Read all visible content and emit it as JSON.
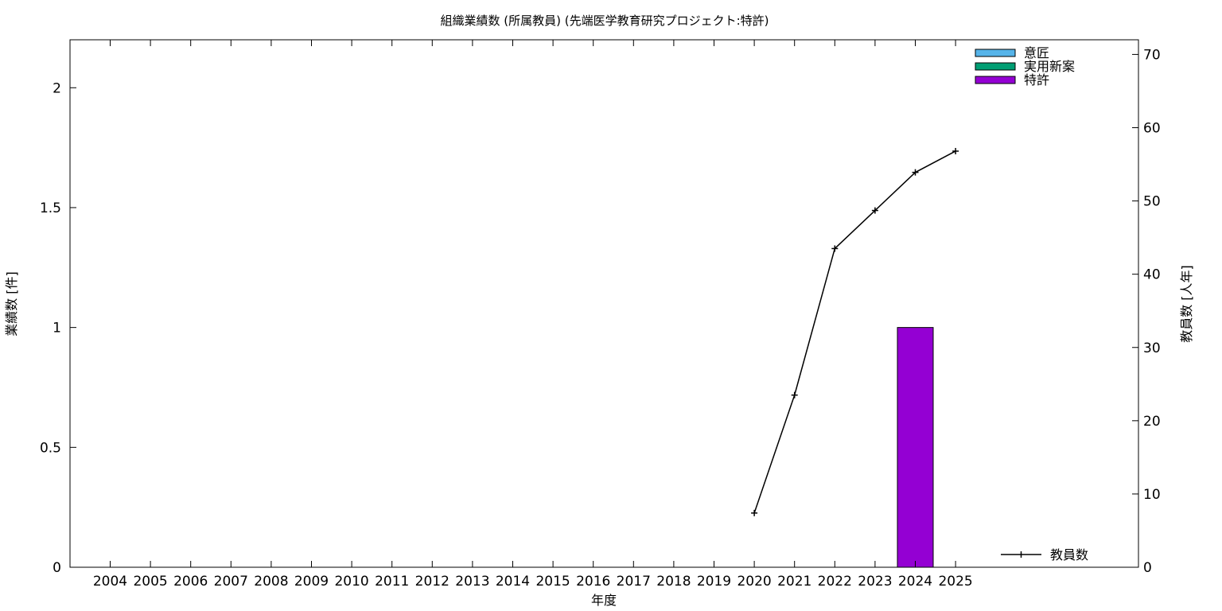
{
  "chart_data": {
    "type": "bar",
    "title": "組織業績数 (所属教員) (先端医学教育研究プロジェクト:特許)",
    "xlabel": "年度",
    "ylabel": "業績数 [件]",
    "y2label": "教員数 [人年]",
    "categories": [
      "2004",
      "2005",
      "2006",
      "2007",
      "2008",
      "2009",
      "2010",
      "2011",
      "2012",
      "2013",
      "2014",
      "2015",
      "2016",
      "2017",
      "2018",
      "2019",
      "2020",
      "2021",
      "2022",
      "2023",
      "2024",
      "2025"
    ],
    "ylim": [
      0,
      2.2
    ],
    "yticks": [
      0,
      0.5,
      1,
      1.5,
      2
    ],
    "ytick_labels": [
      "0",
      "0.5",
      "1",
      "1.5",
      "2"
    ],
    "y2lim": [
      0,
      72
    ],
    "y2ticks": [
      0,
      10,
      20,
      30,
      40,
      50,
      60,
      70
    ],
    "y2tick_labels": [
      "0",
      "10",
      "20",
      "30",
      "40",
      "50",
      "60",
      "70"
    ],
    "series": [
      {
        "name": "意匠",
        "color": "#56b4e9",
        "values": [
          0,
          0,
          0,
          0,
          0,
          0,
          0,
          0,
          0,
          0,
          0,
          0,
          0,
          0,
          0,
          0,
          0,
          0,
          0,
          0,
          0,
          0
        ]
      },
      {
        "name": "実用新案",
        "color": "#009e73",
        "values": [
          0,
          0,
          0,
          0,
          0,
          0,
          0,
          0,
          0,
          0,
          0,
          0,
          0,
          0,
          0,
          0,
          0,
          0,
          0,
          0,
          0,
          0
        ]
      },
      {
        "name": "特許",
        "color": "#9400d3",
        "values": [
          0,
          0,
          0,
          0,
          0,
          0,
          0,
          0,
          0,
          0,
          0,
          0,
          0,
          0,
          0,
          0,
          0,
          0,
          0,
          0,
          1,
          0
        ]
      }
    ],
    "line_series": {
      "name": "教員数",
      "color": "#000000",
      "axis": "right",
      "x": [
        "2020",
        "2021",
        "2022",
        "2023",
        "2024",
        "2025"
      ],
      "values": [
        7.4,
        23.5,
        43.5,
        48.7,
        53.9,
        56.8
      ]
    },
    "legend_placement": "top-right",
    "grid": false
  }
}
